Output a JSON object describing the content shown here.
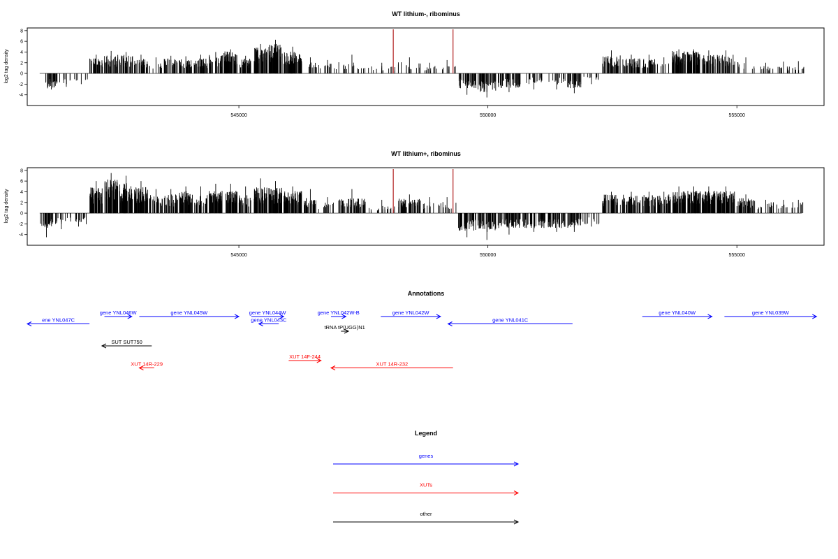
{
  "colors": {
    "gene": "#0000ff",
    "xut": "#ff0000",
    "other": "#000000",
    "marker": "#b22222",
    "signal": "#000000"
  },
  "chart_data": [
    {
      "type": "bar",
      "title": "WT lithium-, ribominus",
      "ylabel": "log2 tag density",
      "xlim": [
        540750,
        556750
      ],
      "ylim": [
        -6,
        8.5
      ],
      "yticks": [
        -4,
        -2,
        0,
        2,
        4,
        6,
        8
      ],
      "xticks": [
        545000,
        550000,
        555000
      ],
      "markers": [
        548100,
        549300
      ],
      "coverage_profile": [
        {
          "x": 541100,
          "mean": -2.0,
          "max": -3.0
        },
        {
          "x": 541400,
          "mean": -1.5,
          "max": -2.5
        },
        {
          "x": 541700,
          "mean": -1.5,
          "max": -2.0
        },
        {
          "x": 542000,
          "mean": 2.0,
          "max": 3.5
        },
        {
          "x": 542300,
          "mean": 2.5,
          "max": 4.2
        },
        {
          "x": 542600,
          "mean": 2.5,
          "max": 4.0
        },
        {
          "x": 542900,
          "mean": 2.0,
          "max": 3.5
        },
        {
          "x": 543200,
          "mean": 1.5,
          "max": 3.0
        },
        {
          "x": 543500,
          "mean": 2.0,
          "max": 3.3
        },
        {
          "x": 543800,
          "mean": 2.0,
          "max": 3.2
        },
        {
          "x": 544100,
          "mean": 2.0,
          "max": 3.5
        },
        {
          "x": 544400,
          "mean": 2.5,
          "max": 4.0
        },
        {
          "x": 544700,
          "mean": 3.0,
          "max": 4.5
        },
        {
          "x": 545000,
          "mean": 2.0,
          "max": 3.3
        },
        {
          "x": 545300,
          "mean": 3.5,
          "max": 5.5
        },
        {
          "x": 545600,
          "mean": 4.0,
          "max": 6.3
        },
        {
          "x": 545900,
          "mean": 3.0,
          "max": 5.0
        },
        {
          "x": 546300,
          "mean": 1.5,
          "max": 3.0
        },
        {
          "x": 546600,
          "mean": 1.5,
          "max": 2.5
        },
        {
          "x": 547000,
          "mean": 1.5,
          "max": 3.5
        },
        {
          "x": 547600,
          "mean": 1.0,
          "max": 2.0
        },
        {
          "x": 548200,
          "mean": 1.5,
          "max": 3.0
        },
        {
          "x": 548700,
          "mean": 1.0,
          "max": 2.0
        },
        {
          "x": 549000,
          "mean": 1.0,
          "max": 2.5
        },
        {
          "x": 549400,
          "mean": -2.0,
          "max": -4.0
        },
        {
          "x": 549800,
          "mean": -2.5,
          "max": -4.5
        },
        {
          "x": 550200,
          "mean": -2.0,
          "max": -3.5
        },
        {
          "x": 550700,
          "mean": -1.5,
          "max": -3.0
        },
        {
          "x": 551200,
          "mean": -1.5,
          "max": -3.0
        },
        {
          "x": 551600,
          "mean": -2.0,
          "max": -3.7
        },
        {
          "x": 551900,
          "mean": -1.0,
          "max": -2.0
        },
        {
          "x": 552300,
          "mean": 2.5,
          "max": 4.3
        },
        {
          "x": 552700,
          "mean": 2.0,
          "max": 3.5
        },
        {
          "x": 553100,
          "mean": 2.0,
          "max": 3.5
        },
        {
          "x": 553400,
          "mean": 1.5,
          "max": 3.0
        },
        {
          "x": 553700,
          "mean": 3.0,
          "max": 4.5
        },
        {
          "x": 554000,
          "mean": 3.0,
          "max": 4.5
        },
        {
          "x": 554300,
          "mean": 2.5,
          "max": 4.3
        },
        {
          "x": 554600,
          "mean": 2.5,
          "max": 4.3
        },
        {
          "x": 555000,
          "mean": 1.5,
          "max": 3.0
        },
        {
          "x": 555400,
          "mean": 1.0,
          "max": 2.0
        },
        {
          "x": 555800,
          "mean": 1.0,
          "max": 2.2
        },
        {
          "x": 556100,
          "mean": 1.0,
          "max": 2.3
        }
      ]
    },
    {
      "type": "bar",
      "title": "WT lithium+, ribominus",
      "ylabel": "log2 tag density",
      "xlim": [
        540750,
        556750
      ],
      "ylim": [
        -6,
        8.5
      ],
      "yticks": [
        -4,
        -2,
        0,
        2,
        4,
        6,
        8
      ],
      "xticks": [
        545000,
        550000,
        555000
      ],
      "markers": [
        548100,
        549300
      ],
      "coverage_profile": [
        {
          "x": 541000,
          "mean": -2.0,
          "max": -4.5
        },
        {
          "x": 541300,
          "mean": -1.5,
          "max": -3.0
        },
        {
          "x": 541600,
          "mean": -1.5,
          "max": -2.5
        },
        {
          "x": 542000,
          "mean": 3.5,
          "max": 6.0
        },
        {
          "x": 542300,
          "mean": 4.5,
          "max": 7.5
        },
        {
          "x": 542600,
          "mean": 4.0,
          "max": 7.0
        },
        {
          "x": 542900,
          "mean": 3.5,
          "max": 6.0
        },
        {
          "x": 543200,
          "mean": 2.5,
          "max": 4.5
        },
        {
          "x": 543500,
          "mean": 2.5,
          "max": 4.5
        },
        {
          "x": 543800,
          "mean": 3.0,
          "max": 5.0
        },
        {
          "x": 544100,
          "mean": 2.5,
          "max": 5.0
        },
        {
          "x": 544400,
          "mean": 3.0,
          "max": 5.5
        },
        {
          "x": 544700,
          "mean": 3.0,
          "max": 5.5
        },
        {
          "x": 545000,
          "mean": 2.5,
          "max": 5.0
        },
        {
          "x": 545300,
          "mean": 3.5,
          "max": 6.5
        },
        {
          "x": 545600,
          "mean": 3.5,
          "max": 6.0
        },
        {
          "x": 545900,
          "mean": 3.0,
          "max": 5.0
        },
        {
          "x": 546300,
          "mean": 2.0,
          "max": 4.5
        },
        {
          "x": 546600,
          "mean": 1.5,
          "max": 3.0
        },
        {
          "x": 547000,
          "mean": 2.0,
          "max": 4.5
        },
        {
          "x": 547600,
          "mean": 1.0,
          "max": 2.5
        },
        {
          "x": 548200,
          "mean": 2.0,
          "max": 3.5
        },
        {
          "x": 548700,
          "mean": 1.5,
          "max": 3.0
        },
        {
          "x": 549000,
          "mean": 1.5,
          "max": 3.0
        },
        {
          "x": 549400,
          "mean": -2.5,
          "max": -4.5
        },
        {
          "x": 549800,
          "mean": -2.5,
          "max": -5.0
        },
        {
          "x": 550200,
          "mean": -2.0,
          "max": -4.0
        },
        {
          "x": 550700,
          "mean": -2.0,
          "max": -3.5
        },
        {
          "x": 551200,
          "mean": -2.0,
          "max": -3.5
        },
        {
          "x": 551600,
          "mean": -2.0,
          "max": -3.5
        },
        {
          "x": 551900,
          "mean": -1.5,
          "max": -2.5
        },
        {
          "x": 552300,
          "mean": 2.5,
          "max": 4.0
        },
        {
          "x": 552700,
          "mean": 2.5,
          "max": 4.0
        },
        {
          "x": 553100,
          "mean": 2.5,
          "max": 4.0
        },
        {
          "x": 553400,
          "mean": 2.5,
          "max": 4.0
        },
        {
          "x": 553700,
          "mean": 3.0,
          "max": 5.0
        },
        {
          "x": 554000,
          "mean": 3.0,
          "max": 5.0
        },
        {
          "x": 554300,
          "mean": 3.0,
          "max": 5.0
        },
        {
          "x": 554600,
          "mean": 3.0,
          "max": 5.0
        },
        {
          "x": 555000,
          "mean": 2.0,
          "max": 3.5
        },
        {
          "x": 555400,
          "mean": 1.5,
          "max": 2.5
        },
        {
          "x": 555800,
          "mean": 1.5,
          "max": 2.5
        },
        {
          "x": 556100,
          "mean": 1.5,
          "max": 2.5
        }
      ]
    },
    {
      "type": "annotation-track",
      "title": "Annotations",
      "xlim": [
        540750,
        556750
      ],
      "features": [
        {
          "label": "ene YNL047C",
          "start": 540750,
          "end": 542000,
          "strand": "-",
          "category": "gene",
          "row": 1
        },
        {
          "label": "gene YNL046W",
          "start": 542300,
          "end": 542850,
          "strand": "+",
          "category": "gene",
          "row": 0
        },
        {
          "label": "gene YNL045W",
          "start": 543000,
          "end": 545000,
          "strand": "+",
          "category": "gene",
          "row": 0
        },
        {
          "label": "gene YNL044W",
          "start": 545250,
          "end": 545900,
          "strand": "+",
          "category": "gene",
          "row": 0
        },
        {
          "label": "gene YNL043C",
          "start": 545400,
          "end": 545800,
          "strand": "-",
          "category": "gene",
          "row": 1
        },
        {
          "label": "gene YNL042W-B",
          "start": 546850,
          "end": 547150,
          "strand": "+",
          "category": "gene",
          "row": 0
        },
        {
          "label": "tRNA tP(UGG)N1",
          "start": 547050,
          "end": 547200,
          "strand": "+",
          "category": "other",
          "row": 2
        },
        {
          "label": "gene YNL042W",
          "start": 547850,
          "end": 549050,
          "strand": "+",
          "category": "gene",
          "row": 0
        },
        {
          "label": "gene YNL041C",
          "start": 549200,
          "end": 551700,
          "strand": "-",
          "category": "gene",
          "row": 1
        },
        {
          "label": "gene YNL040W",
          "start": 553100,
          "end": 554500,
          "strand": "+",
          "category": "gene",
          "row": 0
        },
        {
          "label": "gene YNL039W",
          "start": 554750,
          "end": 556600,
          "strand": "+",
          "category": "gene",
          "row": 0
        },
        {
          "label": "SUT SUT750",
          "start": 542250,
          "end": 543250,
          "strand": "-",
          "category": "other",
          "row": 4
        },
        {
          "label": "XUT 14R-229",
          "start": 543000,
          "end": 543300,
          "strand": "-",
          "category": "xut",
          "row": 7
        },
        {
          "label": "XUT 14F-244",
          "start": 546000,
          "end": 546650,
          "strand": "+",
          "category": "xut",
          "row": 6
        },
        {
          "label": "XUT 14R-232",
          "start": 546850,
          "end": 549300,
          "strand": "-",
          "category": "xut",
          "row": 7
        }
      ]
    }
  ],
  "legend": {
    "title": "Legend",
    "items": [
      {
        "label": "genes",
        "category": "gene"
      },
      {
        "label": "XUTs",
        "category": "xut"
      },
      {
        "label": "other",
        "category": "other"
      }
    ]
  }
}
